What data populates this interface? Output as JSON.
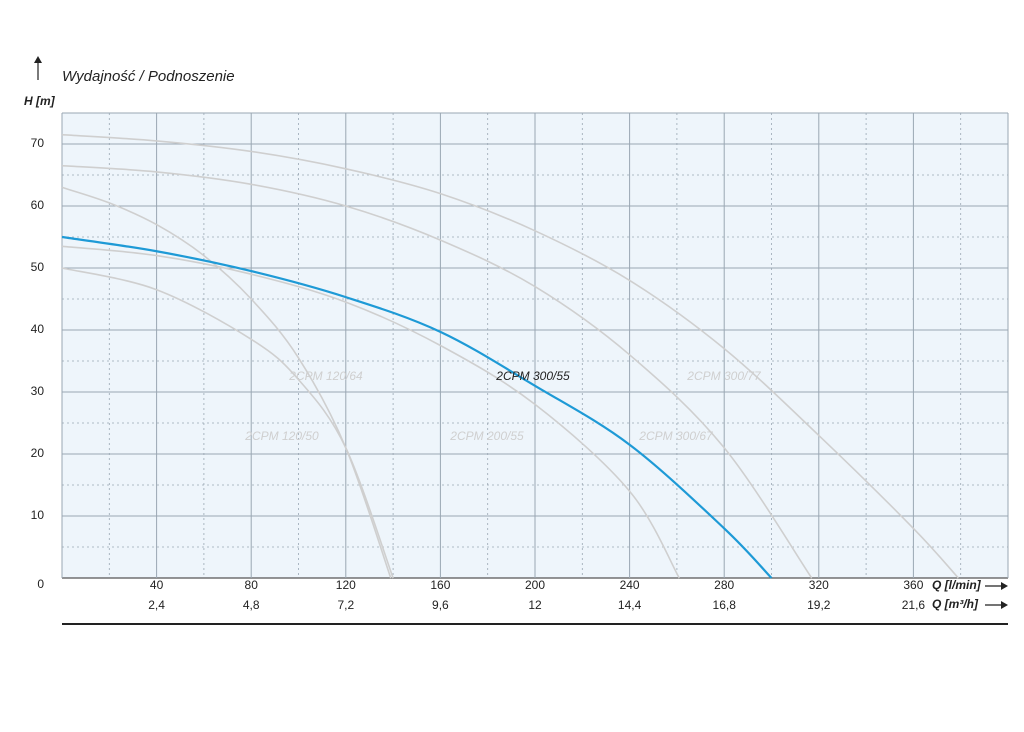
{
  "chart_data": {
    "type": "line",
    "title": "Wydajność / Podnoszenie",
    "y_label": "H [m]",
    "x_label": "Q [l/min]",
    "x2_label": "Q [m³/h]",
    "xlim": [
      0,
      400
    ],
    "ylim": [
      0,
      75
    ],
    "x2lim": [
      0,
      24
    ],
    "xticks": [
      40,
      80,
      120,
      160,
      200,
      240,
      280,
      320,
      360
    ],
    "xminorticks": [
      20,
      60,
      100,
      140,
      180,
      220,
      260,
      300,
      340,
      380
    ],
    "yticks": [
      0,
      10,
      20,
      30,
      40,
      50,
      60,
      70
    ],
    "yminorticks": [
      5,
      15,
      25,
      35,
      45,
      55,
      65
    ],
    "x2ticks": [
      {
        "value": 2.4,
        "label": "2,4"
      },
      {
        "value": 4.8,
        "label": "4,8"
      },
      {
        "value": 7.2,
        "label": "7,2"
      },
      {
        "value": 9.6,
        "label": "9,6"
      },
      12,
      {
        "value": 14.4,
        "label": "14,4"
      },
      {
        "value": 16.8,
        "label": "16,8"
      },
      {
        "value": 19.2,
        "label": "19,2"
      },
      {
        "value": 21.6,
        "label": "21,6"
      }
    ],
    "grid": true,
    "series": [
      {
        "name": "2CPM 120/50",
        "color": "#cfcfcf",
        "x": [
          0,
          40,
          80,
          100,
          120,
          140
        ],
        "values": [
          50,
          46.5,
          38.5,
          32,
          21,
          0
        ]
      },
      {
        "name": "2CPM 120/64",
        "color": "#cfcfcf",
        "x": [
          0,
          20,
          40,
          60,
          80,
          100,
          120,
          139
        ],
        "values": [
          63,
          60.5,
          57,
          52,
          45,
          35.5,
          21,
          0
        ]
      },
      {
        "name": "2CPM 200/55",
        "color": "#cfcfcf",
        "x": [
          0,
          40,
          80,
          120,
          160,
          200,
          240,
          261
        ],
        "values": [
          53.5,
          52,
          49,
          44.5,
          37.5,
          28,
          14,
          0
        ]
      },
      {
        "name": "2CPM 300/67",
        "color": "#cfcfcf",
        "x": [
          0,
          40,
          80,
          120,
          160,
          200,
          240,
          280,
          317
        ],
        "values": [
          66.5,
          65.5,
          63.5,
          60,
          54.5,
          47,
          36,
          21,
          0
        ]
      },
      {
        "name": "2CPM 300/77",
        "color": "#cfcfcf",
        "x": [
          0,
          40,
          80,
          120,
          160,
          200,
          240,
          280,
          320,
          360,
          379
        ],
        "values": [
          71.5,
          70.5,
          68.8,
          66,
          62,
          56,
          48,
          37,
          23,
          8,
          0
        ]
      },
      {
        "name": "2CPM 300/55",
        "color": "#1e9ad6",
        "x": [
          0,
          40,
          80,
          120,
          160,
          200,
          240,
          280,
          300
        ],
        "values": [
          55,
          52.7,
          49.5,
          45.3,
          39.7,
          31,
          21.5,
          8,
          0
        ]
      }
    ]
  }
}
